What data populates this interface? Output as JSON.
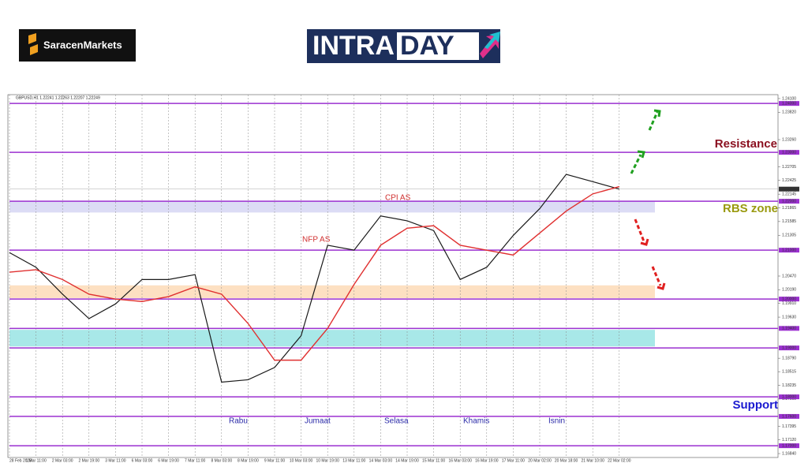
{
  "header": {
    "brand": "SaracenMarkets",
    "logo_left": "INTRA",
    "logo_right": "DAY"
  },
  "chart_data": {
    "type": "line",
    "title": "GBPUSD,H1 1.22241 1.22263 1.22207 1.22249",
    "categories": [
      "28 Feb 2023",
      "1 Mar 11:00",
      "2 Mar 03:00",
      "2 Mar 19:00",
      "3 Mar 11:00",
      "6 Mar 03:00",
      "6 Mar 19:00",
      "7 Mar 11:00",
      "8 Mar 03:00",
      "8 Mar 19:00",
      "9 Mar 11:00",
      "10 Mar 03:00",
      "10 Mar 19:00",
      "13 Mar 11:00",
      "14 Mar 03:00",
      "14 Mar 19:00",
      "15 Mar 11:00",
      "16 Mar 03:00",
      "16 Mar 19:00",
      "17 Mar 11:00",
      "20 Mar 02:00",
      "20 Mar 18:00",
      "21 Mar 10:00",
      "22 Mar 02:00"
    ],
    "series": [
      {
        "color": "#1a1a1a",
        "values": [
          1.2095,
          1.2065,
          1.201,
          1.196,
          1.199,
          1.204,
          1.204,
          1.205,
          1.183,
          1.1835,
          1.186,
          1.1925,
          1.211,
          1.21,
          1.217,
          1.216,
          1.214,
          1.204,
          1.2065,
          1.213,
          1.2185,
          1.2255,
          1.224,
          1.2225
        ]
      },
      {
        "color": "#e03030",
        "values": [
          1.2055,
          1.206,
          1.204,
          1.201,
          1.2,
          1.1995,
          1.2005,
          1.2025,
          1.201,
          1.195,
          1.1875,
          1.1875,
          1.194,
          1.203,
          1.211,
          1.2145,
          1.215,
          1.211,
          1.21,
          1.209,
          1.2135,
          1.218,
          1.2215,
          1.223
        ]
      }
    ],
    "ylim": [
      1.1676,
      1.2418
    ],
    "yticks": [
      {
        "value": 1.241,
        "label": "1.24100"
      },
      {
        "value": 1.2382,
        "label": "1.23820"
      },
      {
        "value": 1.2326,
        "label": "1.23260"
      },
      {
        "value": 1.22705,
        "label": "1.22705"
      },
      {
        "value": 1.22425,
        "label": "1.22425"
      },
      {
        "value": 1.22145,
        "label": "1.22145"
      },
      {
        "value": 1.21865,
        "label": "1.21865"
      },
      {
        "value": 1.21585,
        "label": "1.21585"
      },
      {
        "value": 1.21305,
        "label": "1.21305"
      },
      {
        "value": 1.2047,
        "label": "1.20470"
      },
      {
        "value": 1.2019,
        "label": "1.20190"
      },
      {
        "value": 1.1991,
        "label": "1.19910"
      },
      {
        "value": 1.1963,
        "label": "1.19630"
      },
      {
        "value": 1.1879,
        "label": "1.18790"
      },
      {
        "value": 1.18515,
        "label": "1.18515"
      },
      {
        "value": 1.18235,
        "label": "1.18235"
      },
      {
        "value": 1.17955,
        "label": "1.17955"
      },
      {
        "value": 1.17395,
        "label": "1.17395"
      },
      {
        "value": 1.1712,
        "label": "1.17120"
      },
      {
        "value": 1.1684,
        "label": "1.16840"
      }
    ],
    "levels": [
      {
        "value": 1.24,
        "label": "1.24000"
      },
      {
        "value": 1.23,
        "label": "1.23000"
      },
      {
        "value": 1.22,
        "label": "1.22000"
      },
      {
        "value": 1.21,
        "label": "1.21000"
      },
      {
        "value": 1.2,
        "label": "1.20000"
      },
      {
        "value": 1.194,
        "label": "1.19400"
      },
      {
        "value": 1.19,
        "label": "1.19000"
      },
      {
        "value": 1.18,
        "label": "1.18000"
      },
      {
        "value": 1.176,
        "label": "1.17600"
      },
      {
        "value": 1.17,
        "label": "1.17000"
      }
    ],
    "level_color": "#9b30d0",
    "last": {
      "value": 1.22249,
      "label": "1.22249"
    },
    "zones": [
      {
        "from": 1.2177,
        "to": 1.22,
        "color": "#dcdcf5"
      },
      {
        "from": 1.2002,
        "to": 1.2028,
        "color": "#fde0c2"
      },
      {
        "from": 1.1903,
        "to": 1.1937,
        "color": "#a8e8e8"
      }
    ],
    "grid": true,
    "annotations": {
      "cpi": "CPI AS",
      "nfp": "NFP AS",
      "resistance": "Resistance",
      "rbs": "RBS zone",
      "support": "Support"
    },
    "days": [
      "Rabu",
      "Jumaat",
      "Selasa",
      "Khamis",
      "Isnin"
    ]
  }
}
